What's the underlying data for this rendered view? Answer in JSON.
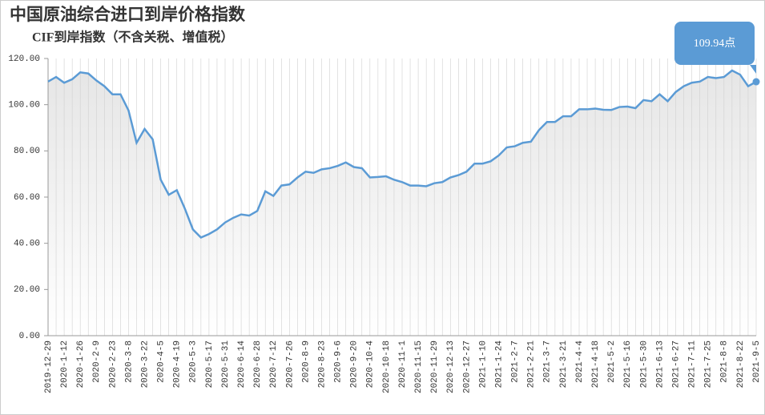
{
  "chart_data": {
    "type": "line",
    "title": "中国原油综合进口到岸价格指数",
    "subtitle": "CIF到岸指数（不含关税、增值税）",
    "categories": [
      "2019-12-29",
      null,
      "2020-1-12",
      null,
      "2020-1-26",
      null,
      "2020-2-9",
      null,
      "2020-2-23",
      null,
      "2020-3-8",
      null,
      "2020-3-22",
      null,
      "2020-4-5",
      null,
      "2020-4-19",
      null,
      "2020-5-3",
      null,
      "2020-5-17",
      null,
      "2020-5-31",
      null,
      "2020-6-14",
      null,
      "2020-6-28",
      null,
      "2020-7-12",
      null,
      "2020-7-26",
      null,
      "2020-8-9",
      null,
      "2020-8-23",
      null,
      "2020-9-6",
      null,
      "2020-9-20",
      null,
      "2020-10-4",
      null,
      "2020-10-18",
      null,
      "2020-11-1",
      null,
      "2020-11-15",
      null,
      "2020-11-29",
      null,
      "2020-12-13",
      null,
      "2020-12-27",
      null,
      "2021-1-10",
      null,
      "2021-1-24",
      null,
      "2021-2-7",
      null,
      "2021-2-21",
      null,
      "2021-3-7",
      null,
      "2021-3-21",
      null,
      "2021-4-4",
      null,
      "2021-4-18",
      null,
      "2021-5-2",
      null,
      "2021-5-16",
      null,
      "2021-5-30",
      null,
      "2021-6-13",
      null,
      "2021-6-27",
      null,
      "2021-7-11",
      null,
      "2021-7-25",
      null,
      "2021-8-8",
      null,
      "2021-8-22",
      null,
      "2021-9-5"
    ],
    "series": [
      {
        "name": "CIF到岸指数",
        "color": "#5b9bd5",
        "values": [
          110,
          112,
          109.5,
          111,
          114,
          113.5,
          110.5,
          108,
          104.5,
          104.5,
          97.5,
          83.5,
          89.5,
          85,
          67.5,
          61,
          63,
          55,
          46,
          42.5,
          44,
          46,
          49,
          51,
          52.5,
          52,
          54,
          62.5,
          60.5,
          65,
          65.5,
          68.5,
          71,
          70.5,
          72,
          72.5,
          73.5,
          75,
          73,
          72.5,
          68.5,
          68.7,
          69,
          67.5,
          66.5,
          65,
          65,
          64.7,
          66,
          66.5,
          68.5,
          69.5,
          71,
          74.5,
          74.5,
          75.5,
          78,
          81.5,
          82,
          83.5,
          84,
          89,
          92.5,
          92.5,
          95,
          95,
          98,
          98,
          98.3,
          97.8,
          97.7,
          99,
          99.2,
          98.5,
          102,
          101.5,
          104.5,
          101.5,
          105.5,
          108,
          109.5,
          110,
          112,
          111.5,
          112,
          114.8,
          113,
          108,
          109.94
        ]
      }
    ],
    "annotations": [
      {
        "text": "109.94点"
      }
    ],
    "ylim": [
      0,
      120
    ],
    "yticks": [
      {
        "value": 0,
        "label": "0.00"
      },
      {
        "value": 20,
        "label": "20.00"
      },
      {
        "value": 40,
        "label": "40.00"
      },
      {
        "value": 60,
        "label": "60.00"
      },
      {
        "value": 80,
        "label": "80.00"
      },
      {
        "value": 100,
        "label": "100.00"
      },
      {
        "value": 120,
        "label": "120.00"
      }
    ],
    "grid": true
  }
}
